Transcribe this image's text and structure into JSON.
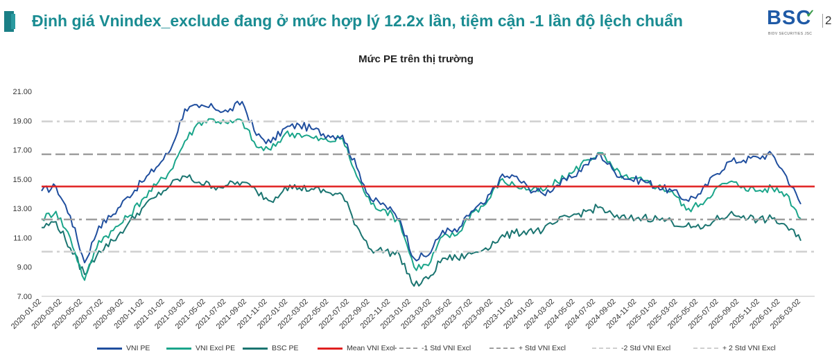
{
  "header": {
    "title": "Định giá Vnindex_exclude đang ở mức hợp lý 12.2x lần, tiệm cận -1 lần độ lệch chuẩn",
    "logo_text": "BSC",
    "logo_sub": "BIDV SECURITIES JSC",
    "page_number": "2"
  },
  "chart_data": {
    "type": "line",
    "title": "Mức PE trên thị trường",
    "ylim": [
      7,
      21
    ],
    "yticks": [
      "7.00",
      "9.00",
      "11.00",
      "13.00",
      "15.00",
      "17.00",
      "19.00",
      "21.00"
    ],
    "x_tick_labels": [
      "2020-01-02",
      "2020-03-02",
      "2020-05-02",
      "2020-07-02",
      "2020-09-02",
      "2020-11-02",
      "2021-01-02",
      "2021-03-02",
      "2021-05-02",
      "2021-07-02",
      "2021-09-02",
      "2021-11-02",
      "2022-01-02",
      "2022-03-02",
      "2022-05-02",
      "2022-07-02",
      "2022-09-02",
      "2022-11-02",
      "2023-01-02",
      "2023-03-02",
      "2023-05-02",
      "2023-07-02",
      "2023-09-02",
      "2023-11-02",
      "2024-01-02",
      "2024-03-02",
      "2024-05-02",
      "2024-07-02",
      "2024-09-02",
      "2024-11-02",
      "2025-01-02",
      "2025-03-02",
      "2025-05-02",
      "2025-07-02",
      "2025-09-02",
      "2025-11-02",
      "2026-01-02",
      "2026-03-02"
    ],
    "grid": false,
    "legend_position": "bottom",
    "series": [
      {
        "name": "VNI PE",
        "color": "#1f4e9e",
        "values": [
          14.2,
          14.5,
          12.5,
          9.3,
          11.8,
          12.6,
          13.8,
          14.8,
          15.8,
          17.0,
          19.8,
          19.9,
          19.9,
          19.6,
          20.3,
          18.0,
          17.5,
          18.5,
          18.7,
          18.4,
          18.0,
          18.0,
          15.8,
          13.6,
          13.2,
          12.3,
          9.6,
          9.8,
          11.5,
          11.4,
          12.8,
          13.4,
          15.1,
          15.2,
          14.4,
          14.0,
          14.6,
          15.1,
          16.0,
          16.7,
          15.5,
          15.0,
          14.9,
          14.5,
          14.2,
          13.6,
          14.0,
          15.3,
          16.2,
          16.3,
          16.5,
          16.7,
          15.2,
          13.3
        ]
      },
      {
        "name": "VNI Excl PE",
        "color": "#1aa58a",
        "values": [
          12.3,
          12.8,
          11.0,
          8.1,
          10.8,
          11.5,
          12.4,
          13.6,
          14.6,
          15.6,
          17.6,
          18.9,
          19.1,
          18.8,
          19.0,
          17.2,
          17.0,
          18.1,
          18.1,
          17.8,
          17.6,
          17.8,
          15.2,
          13.3,
          12.9,
          12.1,
          9.0,
          9.1,
          11.1,
          11.2,
          12.7,
          13.3,
          14.9,
          14.6,
          14.3,
          14.2,
          14.8,
          15.4,
          16.3,
          16.8,
          15.6,
          15.0,
          14.9,
          14.5,
          14.2,
          12.9,
          13.3,
          14.3,
          14.8,
          14.5,
          14.2,
          14.4,
          14.0,
          12.3
        ]
      },
      {
        "name": "BSC PE",
        "color": "#1a7470",
        "values": [
          11.7,
          12.1,
          10.3,
          8.5,
          10.1,
          10.8,
          11.9,
          13.0,
          13.8,
          14.6,
          15.2,
          14.8,
          14.5,
          14.6,
          14.8,
          14.2,
          13.5,
          14.5,
          14.4,
          14.3,
          14.1,
          13.9,
          11.8,
          10.2,
          10.1,
          9.8,
          7.7,
          8.2,
          9.6,
          9.6,
          9.9,
          10.3,
          11.0,
          11.3,
          11.5,
          11.5,
          12.1,
          12.5,
          12.8,
          13.1,
          12.4,
          12.3,
          12.4,
          12.3,
          12.1,
          11.8,
          11.6,
          12.2,
          12.6,
          12.5,
          12.2,
          12.3,
          11.8,
          10.8
        ]
      },
      {
        "name": "Mean VNI Excl",
        "color": "#e02020",
        "values": [
          14.5,
          14.5
        ]
      },
      {
        "name": "-1 Std VNI Excl",
        "color": "#9e9e9e",
        "values": [
          12.25,
          12.25
        ]
      },
      {
        "name": "+ Std VNI Excl",
        "color": "#9e9e9e",
        "values": [
          16.7,
          16.7
        ]
      },
      {
        "name": "-2 Std VNI Excl",
        "color": "#cfcfcf",
        "values": [
          10.05,
          10.05
        ]
      },
      {
        "name": "+ 2 Std VNI Excl",
        "color": "#cfcfcf",
        "values": [
          18.95,
          18.95
        ]
      }
    ]
  }
}
